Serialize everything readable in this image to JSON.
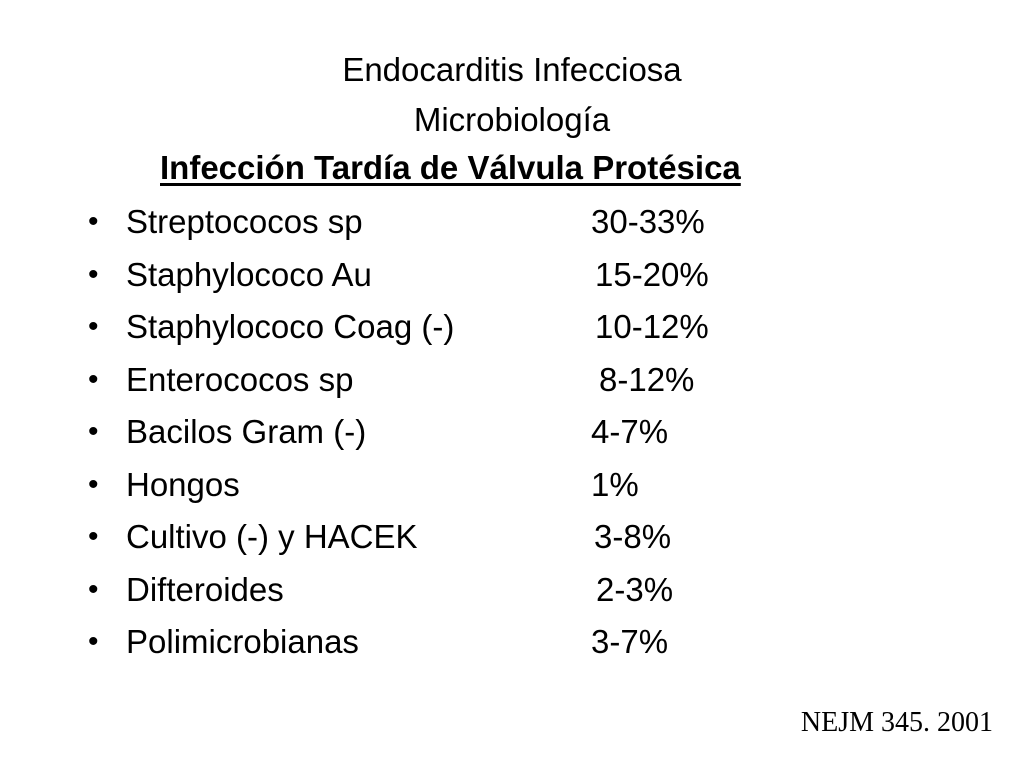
{
  "slide": {
    "title_line1": "Endocarditis Infecciosa",
    "title_line2": "Microbiología",
    "subtitle": "Infección Tardía de Válvula Protésica",
    "bullet_symbol": "•",
    "items": [
      {
        "label": "Streptococos sp",
        "value": "30-33%"
      },
      {
        "label": "Staphylococo Au",
        "value": "15-20%"
      },
      {
        "label": "Staphylococo Coag (-)",
        "value": "10-12%"
      },
      {
        "label": "Enterococos sp",
        "value": "8-12%"
      },
      {
        "label": "Bacilos Gram (-)",
        "value": "4-7%"
      },
      {
        "label": "Hongos",
        "value": "1%"
      },
      {
        "label": "Cultivo (-) y HACEK",
        "value": "3-8%"
      },
      {
        "label": "Difteroides",
        "value": "2-3%"
      },
      {
        "label": "Polimicrobianas",
        "value": "3-7%"
      }
    ],
    "reference": "NEJM 345. 2001"
  }
}
